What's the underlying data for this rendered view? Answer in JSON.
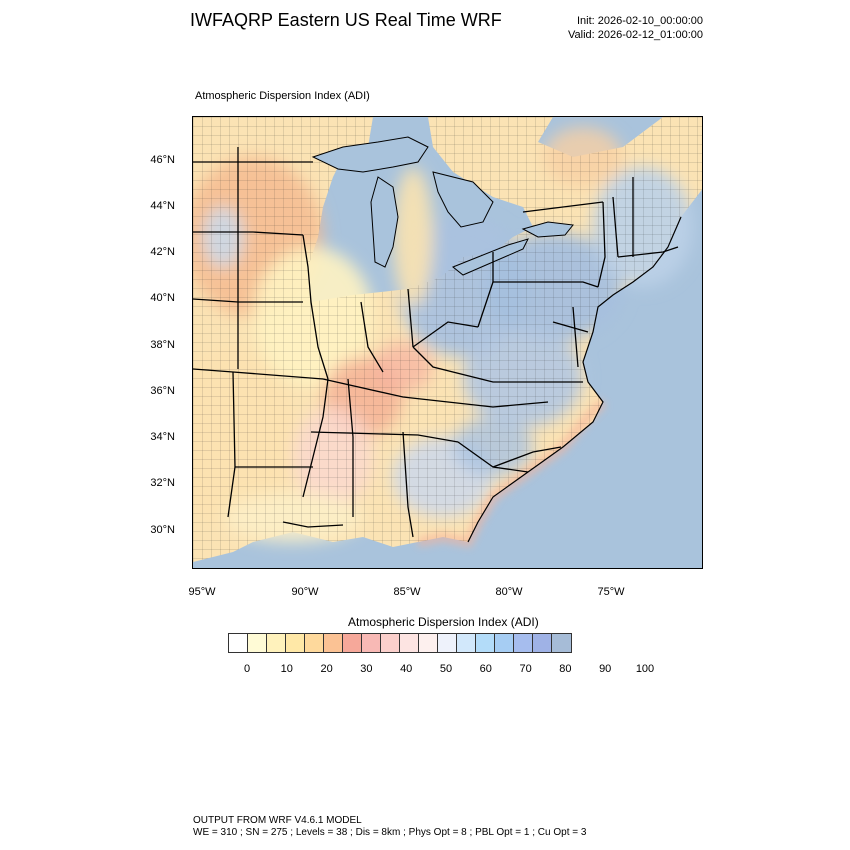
{
  "header": {
    "title": "IWFAQRP Eastern US Real Time WRF",
    "init": "Init: 2026-02-10_00:00:00",
    "valid": "Valid: 2026-02-12_01:00:00"
  },
  "map": {
    "field_title": "Atmospheric Dispersion Index   (ADI)",
    "lat_labels": [
      "46°N",
      "44°N",
      "42°N",
      "40°N",
      "38°N",
      "36°N",
      "34°N",
      "32°N",
      "30°N"
    ],
    "lon_labels": [
      "95°W",
      "90°W",
      "85°W",
      "80°W",
      "75°W"
    ],
    "colors": {
      "ocean": "#a9c3dc",
      "land_low": "#fff7c4",
      "land_mid": "#f7c59c",
      "land_high": "#aac2df",
      "border": "#000000"
    }
  },
  "colorbar": {
    "title": "Atmospheric Dispersion Index  (ADI)",
    "colors": [
      "#ffffff",
      "#fffbd6",
      "#fff2bc",
      "#ffe8a7",
      "#fed99c",
      "#fbc294",
      "#f6a89a",
      "#f8b9b5",
      "#fbd0cc",
      "#fde4e2",
      "#fdf0ee",
      "#eef2fb",
      "#d2e8fb",
      "#b3dcf9",
      "#a6cdf3",
      "#a6bdee",
      "#9fb2e6",
      "#a6bcd7"
    ],
    "labels": [
      "0",
      "10",
      "20",
      "30",
      "40",
      "50",
      "60",
      "70",
      "80",
      "90",
      "100"
    ]
  },
  "footer": {
    "line1": "OUTPUT FROM WRF V4.6.1 MODEL",
    "line2": "WE = 310 ; SN = 275 ; Levels = 38 ; Dis = 8km ; Phys Opt = 8 ; PBL Opt = 1 ; Cu Opt = 3"
  }
}
